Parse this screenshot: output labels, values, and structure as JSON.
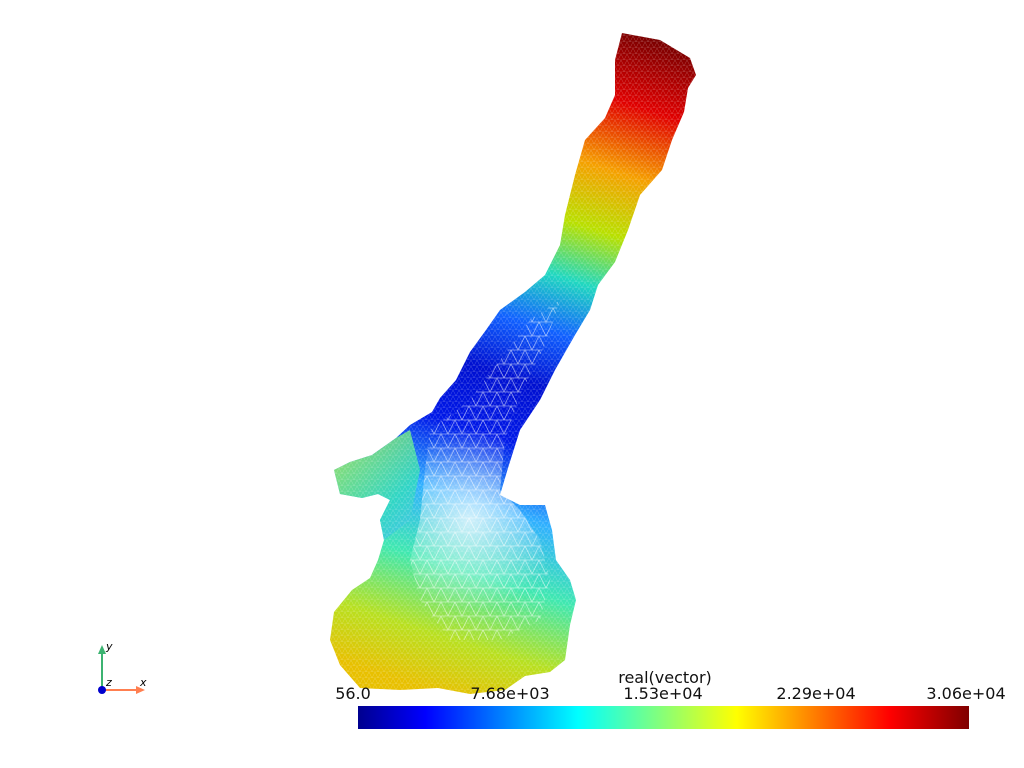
{
  "scalar_bar": {
    "title": "real(vector)",
    "ticks": [
      "56.0",
      "7.68e+03",
      "1.53e+04",
      "2.29e+04",
      "3.06e+04"
    ],
    "colormap": [
      "#00008f",
      "#0000ff",
      "#00ffff",
      "#ffff00",
      "#ff0000",
      "#800000"
    ]
  },
  "axes": {
    "x_label": "x",
    "y_label": "y",
    "z_label": "z",
    "x_color": "#ff7f50",
    "y_color": "#3cb371",
    "z_color": "#0000cd"
  },
  "mesh": {
    "description_colors": [
      "#7a0000",
      "#d40000",
      "#e8b400",
      "#9be000",
      "#3fd3b0",
      "#0018d8",
      "#4cc9f0"
    ]
  }
}
